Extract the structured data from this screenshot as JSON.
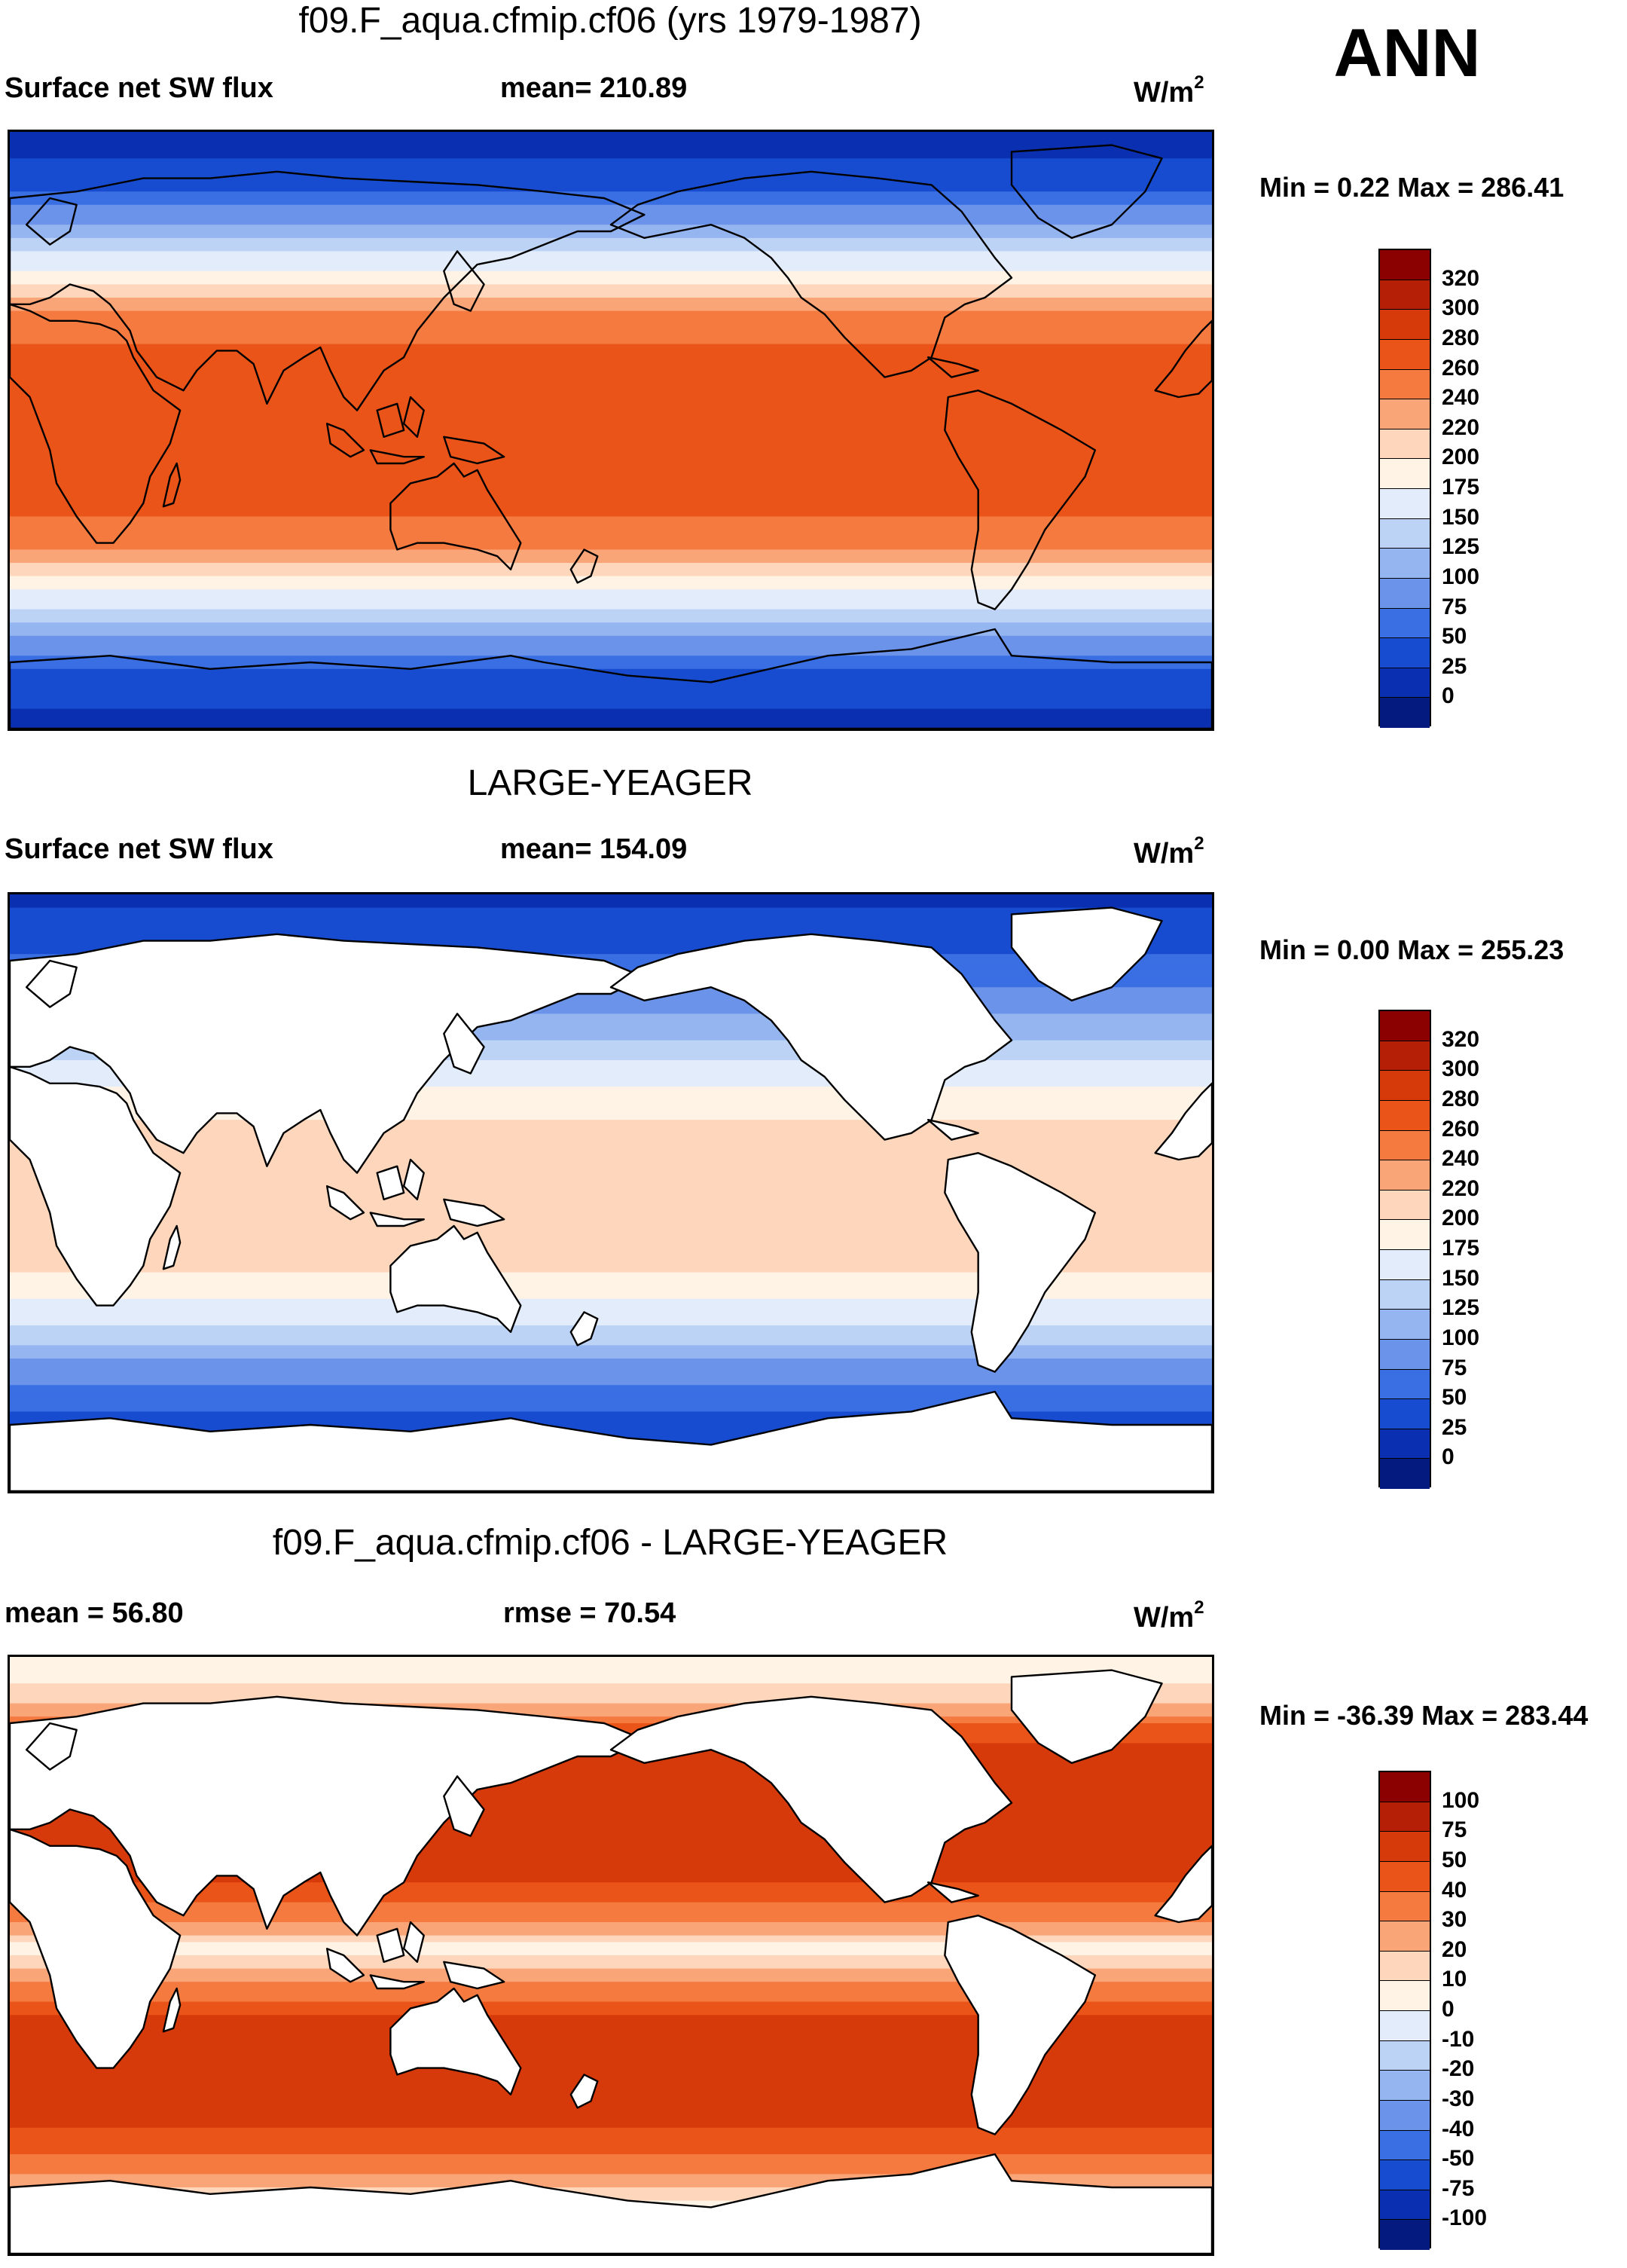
{
  "annotation": "ANN",
  "units": "W/m",
  "units_sup": "2",
  "panels": [
    {
      "title": "f09.F_aqua.cfmip.cf06 (yrs 1979-1987)",
      "left_label": "Surface net SW flux",
      "center_label": "mean= 210.89",
      "minmax": "Min =   0.22 Max = 286.41",
      "colorbar": {
        "labels": [
          "320",
          "300",
          "280",
          "260",
          "240",
          "220",
          "200",
          "175",
          "150",
          "125",
          "100",
          "75",
          "50",
          "25",
          "0"
        ],
        "colors": [
          "#8b0000",
          "#b41f05",
          "#d63a0a",
          "#ea5419",
          "#f47a40",
          "#f9a578",
          "#fdd6bb",
          "#fff3e6",
          "#e2ecfb",
          "#bcd3f6",
          "#95b5f0",
          "#6b93ea",
          "#3a6fe4",
          "#184cd0",
          "#0a2fb0",
          "#041a7e"
        ]
      },
      "lat_profile": [
        {
          "lat": 90,
          "value": 12
        },
        {
          "lat": 75,
          "value": 35
        },
        {
          "lat": 65,
          "value": 85
        },
        {
          "lat": 55,
          "value": 140
        },
        {
          "lat": 45,
          "value": 195
        },
        {
          "lat": 35,
          "value": 240
        },
        {
          "lat": 22,
          "value": 268
        },
        {
          "lat": 12,
          "value": 275
        },
        {
          "lat": 0,
          "value": 262
        },
        {
          "lat": -12,
          "value": 275
        },
        {
          "lat": -22,
          "value": 270
        },
        {
          "lat": -35,
          "value": 242
        },
        {
          "lat": -45,
          "value": 195
        },
        {
          "lat": -55,
          "value": 140
        },
        {
          "lat": -65,
          "value": 85
        },
        {
          "lat": -75,
          "value": 40
        },
        {
          "lat": -90,
          "value": 15
        }
      ]
    },
    {
      "title": "LARGE-YEAGER",
      "left_label": "Surface net SW flux",
      "center_label": "mean= 154.09",
      "minmax": "Min =   0.00 Max = 255.23",
      "colorbar": {
        "labels": [
          "320",
          "300",
          "280",
          "260",
          "240",
          "220",
          "200",
          "175",
          "150",
          "125",
          "100",
          "75",
          "50",
          "25",
          "0"
        ],
        "colors": [
          "#8b0000",
          "#b41f05",
          "#d63a0a",
          "#ea5419",
          "#f47a40",
          "#f9a578",
          "#fdd6bb",
          "#fff3e6",
          "#e2ecfb",
          "#bcd3f6",
          "#95b5f0",
          "#6b93ea",
          "#3a6fe4",
          "#184cd0",
          "#0a2fb0",
          "#041a7e"
        ]
      },
      "lat_profile": [
        {
          "lat": 90,
          "value": 20
        },
        {
          "lat": 75,
          "value": 40
        },
        {
          "lat": 62,
          "value": 75
        },
        {
          "lat": 50,
          "value": 110
        },
        {
          "lat": 40,
          "value": 150
        },
        {
          "lat": 30,
          "value": 185
        },
        {
          "lat": 18,
          "value": 205
        },
        {
          "lat": 8,
          "value": 215
        },
        {
          "lat": 0,
          "value": 198
        },
        {
          "lat": -10,
          "value": 218
        },
        {
          "lat": -22,
          "value": 205
        },
        {
          "lat": -32,
          "value": 178
        },
        {
          "lat": -42,
          "value": 140
        },
        {
          "lat": -52,
          "value": 95
        },
        {
          "lat": -62,
          "value": 60
        },
        {
          "lat": -72,
          "value": 30
        },
        {
          "lat": -90,
          "value": 10
        }
      ]
    },
    {
      "title": "f09.F_aqua.cfmip.cf06 - LARGE-YEAGER",
      "left_label": "mean =  56.80",
      "center_label": "rmse =  70.54",
      "minmax": "Min = -36.39 Max = 283.44",
      "colorbar": {
        "labels": [
          "100",
          "75",
          "50",
          "40",
          "30",
          "20",
          "10",
          "0",
          "-10",
          "-20",
          "-30",
          "-40",
          "-50",
          "-75",
          "-100"
        ],
        "colors": [
          "#8b0000",
          "#b41f05",
          "#d63a0a",
          "#ea5419",
          "#f47a40",
          "#f9a578",
          "#fdd6bb",
          "#fff3e6",
          "#e2ecfb",
          "#bcd3f6",
          "#95b5f0",
          "#6b93ea",
          "#3a6fe4",
          "#184cd0",
          "#0a2fb0",
          "#041a7e"
        ]
      },
      "lat_profile": [
        {
          "lat": 90,
          "value": 5
        },
        {
          "lat": 78,
          "value": 12
        },
        {
          "lat": 68,
          "value": 45
        },
        {
          "lat": 55,
          "value": 62
        },
        {
          "lat": 42,
          "value": 70
        },
        {
          "lat": 30,
          "value": 62
        },
        {
          "lat": 18,
          "value": 45
        },
        {
          "lat": 8,
          "value": 25
        },
        {
          "lat": 2,
          "value": 5
        },
        {
          "lat": -8,
          "value": 28
        },
        {
          "lat": -20,
          "value": 52
        },
        {
          "lat": -32,
          "value": 70
        },
        {
          "lat": -45,
          "value": 58
        },
        {
          "lat": -56,
          "value": 45
        },
        {
          "lat": -66,
          "value": 30
        },
        {
          "lat": -74,
          "value": 10
        },
        {
          "lat": -90,
          "value": 5
        }
      ]
    }
  ]
}
